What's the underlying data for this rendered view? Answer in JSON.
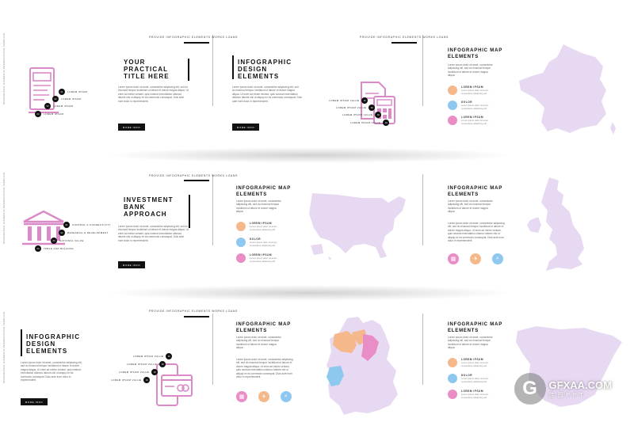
{
  "colors": {
    "lavender": "#e7d9f2",
    "peach": "#f5b88a",
    "blue": "#8ec8ef",
    "pink": "#e88dc6",
    "pinkIcon": "#d98ac7",
    "dark": "#111111"
  },
  "common": {
    "top_label": "PROVIDE INFOGRAPHIC ELEMENTS WORKS LOANS",
    "side_label": "INFOGRAPHIC ELEMENTS PRESENTATION TEMPLATE",
    "more_info": "MORE INFO",
    "lorem_short": "Lorem ipsum dolor sit amet, consectetur adipiscing elit, sed do eiusmod tempor incididunt ut labore et dolore magna aliqua.",
    "lorem_long": "Lorem ipsum dolor sit amet, consectetur adipiscing elit, sed do eiusmod tempor incididunt ut labore et dolore magna aliqua. Ut enim ad minim veniam, quis nostrud exercitation ullamco laboris nisi ut aliquip ex ea commodo consequat. Duis aute irure dolor in reprehenderit.",
    "legend_desc": "Lorem ipsum dolor sit amet, consectetur adipiscing elit"
  },
  "slide1": {
    "title": "YOUR\nPRACTICAL\nTITLE HERE",
    "steps": [
      {
        "num": "01",
        "label": "LOREM IPSUM"
      },
      {
        "num": "02",
        "label": "LOREM IPSUM"
      },
      {
        "num": "03",
        "label": "LOREM IPSUM"
      },
      {
        "num": "04",
        "label": "LOREM IPSUM"
      }
    ]
  },
  "slide2": {
    "title": "INFOGRAPHIC\nDESIGN\nELEMENTS",
    "steps": [
      {
        "num": "01",
        "label": "LOREM IPSUM VALUE"
      },
      {
        "num": "02",
        "label": "LOREM IPSUM VALUE"
      },
      {
        "num": "03",
        "label": "LOREM IPSUM VALUE"
      },
      {
        "num": "04",
        "label": "LOREM IPSUM VALUE"
      }
    ]
  },
  "slide3": {
    "title": "INFOGRAPHIC MAP\nELEMENTS",
    "legend": [
      {
        "title": "LOREM IPSUM"
      },
      {
        "title": "DOLOR"
      },
      {
        "title": "LOREM IPSUM"
      }
    ]
  },
  "slide4": {
    "title": "INVESTMENT\nBANK\nAPPROACH",
    "steps": [
      {
        "num": "01",
        "label": "CONTROL A CONNECTIVITY"
      },
      {
        "num": "02",
        "label": "RESEARCH & DEVELOPMENT"
      },
      {
        "num": "03",
        "label": "NATIONAL VALUE"
      },
      {
        "num": "04",
        "label": "TABLE AND BALANCE"
      }
    ]
  },
  "slide5": {
    "title": "INFOGRAPHIC MAP\nELEMENTS",
    "legend": [
      {
        "title": "LOREM IPSUM"
      },
      {
        "title": "DOLOR"
      },
      {
        "title": "LOREM IPSUM"
      }
    ]
  },
  "slide6": {
    "title": "INFOGRAPHIC MAP\nELEMENTS"
  },
  "slide7": {
    "title": "INFOGRAPHIC\nDESIGN\nELEMENTS",
    "steps": [
      {
        "num": "01",
        "label": "LOREM IPSUM VALUE"
      },
      {
        "num": "02",
        "label": "LOREM IPSUM VALUE"
      },
      {
        "num": "03",
        "label": "LOREM IPSUM VALUE"
      },
      {
        "num": "04",
        "label": "LOREM IPSUM VALUE"
      }
    ]
  },
  "slide8": {
    "title": "INFOGRAPHIC MAP\nELEMENTS"
  },
  "slide9": {
    "title": "INFOGRAPHIC MAP\nELEMENTS",
    "legend": [
      {
        "title": "LOREM IPSUM"
      },
      {
        "title": "DOLOR"
      },
      {
        "title": "LOREM IPSUM"
      }
    ]
  },
  "watermark": {
    "brand": "GFXAA.COM",
    "sub": "佳 图 P P T",
    "logo": "G"
  }
}
